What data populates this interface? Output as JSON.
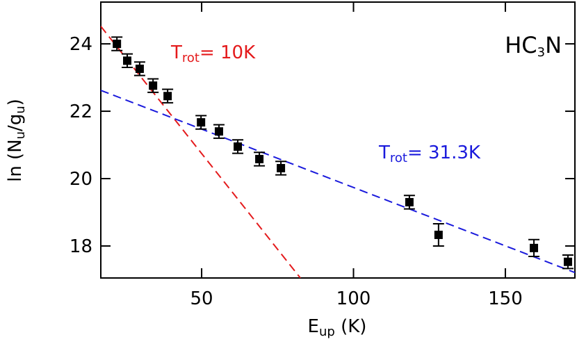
{
  "chart_data": {
    "type": "scatter",
    "label": [
      "HC",
      "3",
      "N"
    ],
    "x_label": [
      "E",
      "up",
      " (K)"
    ],
    "y_label": [
      "ln (N",
      "u",
      "/g",
      "u",
      ")"
    ],
    "xlim": [
      16.8,
      172.9
    ],
    "ylim": [
      17.05,
      25.24
    ],
    "xticks": [
      50,
      100,
      150
    ],
    "yticks": [
      18,
      20,
      22,
      24
    ],
    "x": [
      22.1,
      25.5,
      29.6,
      34.0,
      38.8,
      49.8,
      55.7,
      61.9,
      69.0,
      76.1,
      118.4,
      128.0,
      159.4,
      170.6
    ],
    "values": [
      24.0,
      23.5,
      23.26,
      22.76,
      22.45,
      21.67,
      21.4,
      20.95,
      20.58,
      20.31,
      19.3,
      18.33,
      17.94,
      17.53
    ],
    "errors": [
      0.2,
      0.2,
      0.2,
      0.2,
      0.2,
      0.2,
      0.2,
      0.2,
      0.2,
      0.2,
      0.2,
      0.33,
      0.25,
      0.2
    ],
    "color": "#000000",
    "fits": [
      {
        "color": "#e41a1c",
        "x": [
          16.8,
          82.5
        ],
        "values": [
          24.52,
          17.05
        ],
        "label": [
          "T",
          "rot",
          "=  10K"
        ]
      },
      {
        "color": "#1a1adc",
        "x": [
          16.8,
          172.9
        ],
        "values": [
          22.62,
          17.21
        ],
        "label": [
          "T",
          "rot",
          "=  31.3K"
        ]
      }
    ]
  }
}
